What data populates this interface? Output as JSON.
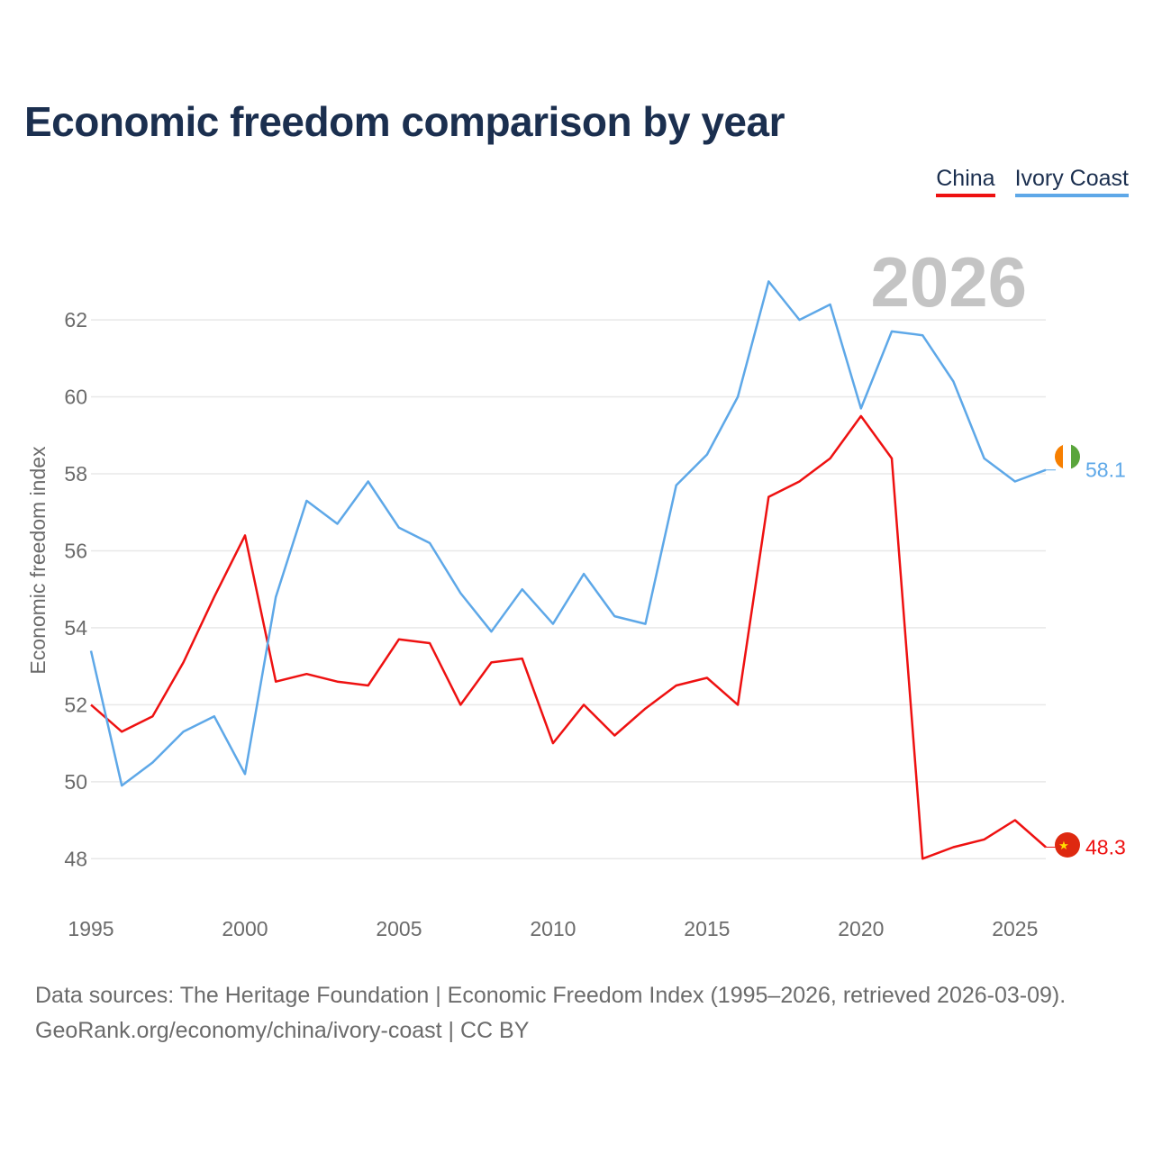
{
  "chart_data": {
    "type": "line",
    "title": "Economic freedom comparison by year",
    "xlabel": "",
    "ylabel": "Economic freedom index",
    "current_year_label": "2026",
    "x": [
      1995,
      1996,
      1997,
      1998,
      1999,
      2000,
      2001,
      2002,
      2003,
      2004,
      2005,
      2006,
      2007,
      2008,
      2009,
      2010,
      2011,
      2012,
      2013,
      2014,
      2015,
      2016,
      2017,
      2018,
      2019,
      2020,
      2021,
      2022,
      2023,
      2024,
      2025,
      2026
    ],
    "xlim": [
      1995,
      2026
    ],
    "ylim": [
      47,
      63.5
    ],
    "x_ticks": [
      1995,
      2000,
      2005,
      2010,
      2015,
      2020,
      2025
    ],
    "y_ticks": [
      48,
      50,
      52,
      54,
      56,
      58,
      60,
      62
    ],
    "grid": true,
    "legend_position": "top-right",
    "series": [
      {
        "name": "China",
        "color": "#ee1111",
        "end_label": "48.3",
        "values": [
          52.0,
          51.3,
          51.7,
          53.1,
          54.8,
          56.4,
          52.6,
          52.8,
          52.6,
          52.5,
          53.7,
          53.6,
          52.0,
          53.1,
          53.2,
          51.0,
          52.0,
          51.2,
          51.9,
          52.5,
          52.7,
          52.0,
          57.4,
          57.8,
          58.4,
          59.5,
          58.4,
          48.0,
          48.3,
          48.5,
          49.0,
          48.3
        ]
      },
      {
        "name": "Ivory Coast",
        "color": "#5ea8e8",
        "end_label": "58.1",
        "values": [
          53.4,
          49.9,
          50.5,
          51.3,
          51.7,
          50.2,
          54.8,
          57.3,
          56.7,
          57.8,
          56.6,
          56.2,
          54.9,
          53.9,
          55.0,
          54.1,
          55.4,
          54.3,
          54.1,
          57.7,
          58.5,
          60.0,
          63.0,
          62.0,
          62.4,
          59.7,
          61.7,
          61.6,
          60.4,
          58.4,
          57.8,
          58.1
        ]
      }
    ]
  },
  "legend": [
    "China",
    "Ivory Coast"
  ],
  "footer": {
    "line1": "Data sources: The Heritage Foundation | Economic Freedom Index (1995–2026, retrieved 2026-03-09).",
    "line2": "GeoRank.org/economy/china/ivory-coast | CC BY"
  },
  "colors": {
    "title": "#1b2f4f",
    "axis_text": "#6b6b6b",
    "year_watermark": "#c4c4c4",
    "grid": "#e8e8e8"
  }
}
